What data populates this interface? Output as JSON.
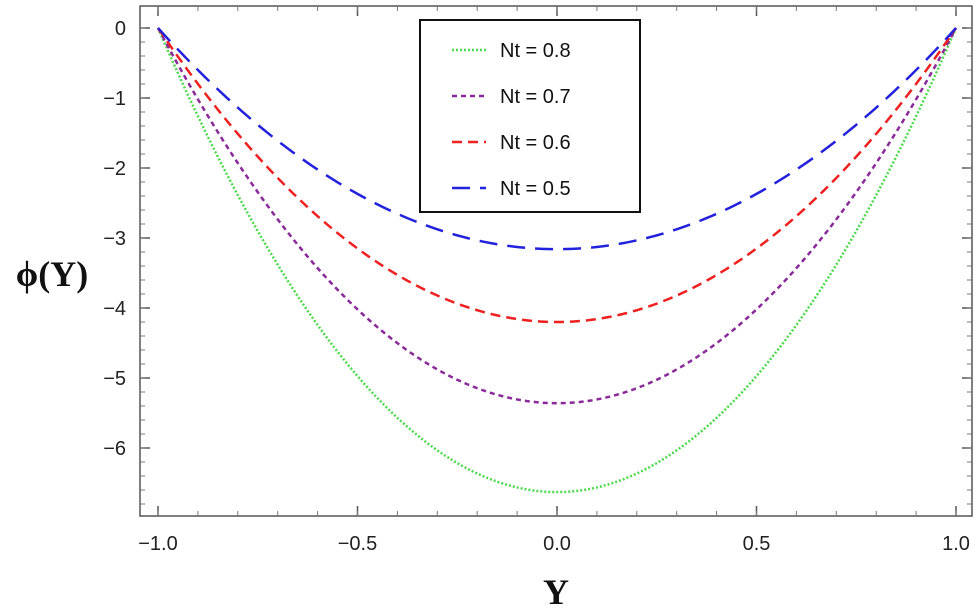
{
  "chart_data": {
    "type": "line",
    "xlabel": "Y",
    "ylabel": "ϕ(Y)",
    "xlim": [
      -1.0,
      1.0
    ],
    "ylim": [
      -7.0,
      0.35
    ],
    "x_ticks": [
      -1.0,
      -0.5,
      0.0,
      0.5,
      1.0
    ],
    "x_tick_labels": [
      "−1.0",
      "−0.5",
      "0.0",
      "0.5",
      "1.0"
    ],
    "y_ticks": [
      0,
      -1,
      -2,
      -3,
      -4,
      -5,
      -6
    ],
    "y_tick_labels": [
      "0",
      "−1",
      "−2",
      "−3",
      "−4",
      "−5",
      "−6"
    ],
    "grid": false,
    "legend_position": "top-center",
    "x": [
      -1.0,
      -0.75,
      -0.5,
      -0.25,
      0.0,
      0.25,
      0.5,
      0.75,
      1.0
    ],
    "series": [
      {
        "name": "Nt = 0.8",
        "color": "#4cd94c",
        "dash": "dotted",
        "values": [
          0.0,
          -2.9,
          -4.97,
          -6.22,
          -6.63,
          -6.22,
          -4.97,
          -2.9,
          0.0
        ]
      },
      {
        "name": "Nt = 0.7",
        "color": "#8a2a9a",
        "dash": "short-dash",
        "values": [
          0.0,
          -2.35,
          -4.02,
          -5.03,
          -5.36,
          -5.03,
          -4.02,
          -2.35,
          0.0
        ]
      },
      {
        "name": "Nt = 0.6",
        "color": "#ee2020",
        "dash": "dash",
        "values": [
          0.0,
          -1.84,
          -3.15,
          -3.93,
          -4.2,
          -3.93,
          -3.15,
          -1.84,
          0.0
        ]
      },
      {
        "name": "Nt = 0.5",
        "color": "#2222dd",
        "dash": "long-dash",
        "values": [
          0.0,
          -1.38,
          -2.37,
          -2.96,
          -3.16,
          -2.96,
          -2.37,
          -1.38,
          0.0
        ]
      }
    ]
  }
}
